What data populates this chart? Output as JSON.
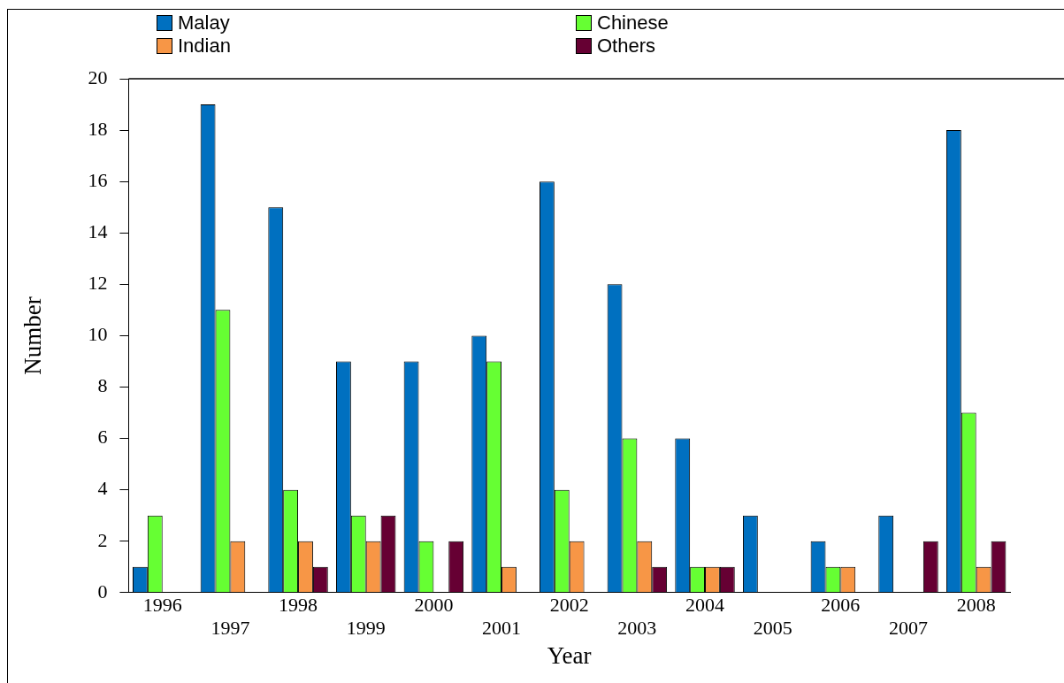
{
  "chart_data": {
    "type": "bar",
    "xlabel": "Year",
    "ylabel": "Number",
    "categories": [
      "1996",
      "1997",
      "1998",
      "1999",
      "2000",
      "2001",
      "2002",
      "2003",
      "2004",
      "2005",
      "2006",
      "2007",
      "2008"
    ],
    "series": [
      {
        "name": "Malay",
        "color": "#0070c0",
        "values": [
          1,
          19,
          15,
          9,
          9,
          10,
          16,
          12,
          6,
          3,
          2,
          3,
          18
        ]
      },
      {
        "name": "Chinese",
        "color": "#66ff33",
        "values": [
          3,
          11,
          4,
          3,
          2,
          9,
          4,
          6,
          1,
          0,
          1,
          0,
          7
        ]
      },
      {
        "name": "Indian",
        "color": "#f79646",
        "values": [
          0,
          2,
          2,
          2,
          0,
          1,
          2,
          2,
          1,
          0,
          1,
          0,
          1
        ]
      },
      {
        "name": "Others",
        "color": "#660033",
        "values": [
          0,
          0,
          1,
          3,
          2,
          0,
          0,
          1,
          1,
          0,
          0,
          2,
          2
        ]
      }
    ],
    "ylim": [
      0,
      20
    ],
    "yticks": [
      0,
      2,
      4,
      6,
      8,
      10,
      12,
      14,
      16,
      18,
      20
    ],
    "grid": false,
    "legend": "top"
  }
}
